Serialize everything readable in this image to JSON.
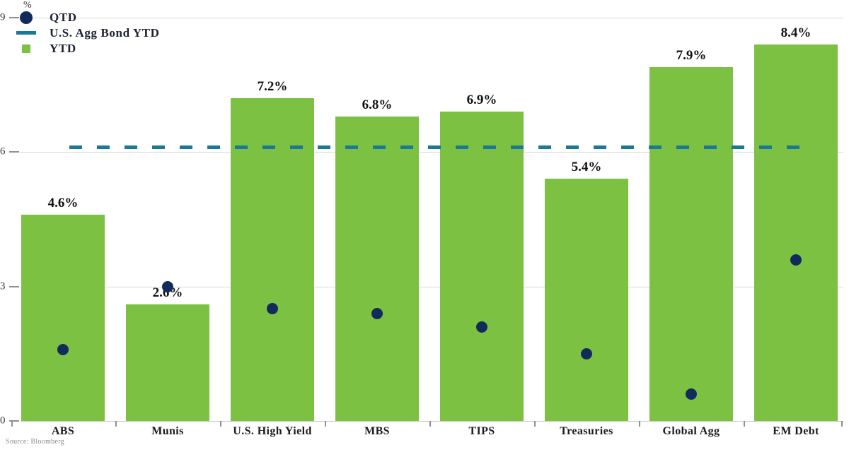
{
  "legend": {
    "items": [
      {
        "label": "QTD",
        "marker": "circle"
      },
      {
        "label": "U.S. Agg Bond YTD",
        "marker": "dash"
      },
      {
        "label": "YTD",
        "marker": "square"
      }
    ]
  },
  "axis": {
    "unit_label": "%"
  },
  "source": "Source: Bloomberg",
  "colors": {
    "bar_green": "#7cc142",
    "dot_navy": "#112c5c",
    "line_teal": "#1b7897",
    "grid": "#d9d9d9",
    "tick": "#8f8f8f"
  },
  "chart_data": {
    "type": "bar",
    "title": "",
    "categories": [
      "ABS",
      "Munis",
      "U.S. High Yield",
      "MBS",
      "TIPS",
      "Treasuries",
      "Global Agg",
      "EM Debt"
    ],
    "series": [
      {
        "name": "YTD",
        "type": "bar",
        "color": "#7cc142",
        "values": [
          4.6,
          2.6,
          7.2,
          6.8,
          6.9,
          5.4,
          7.9,
          8.4
        ],
        "labels": [
          "4.6%",
          "2.6%",
          "7.2%",
          "6.8%",
          "6.9%",
          "5.4%",
          "7.9%",
          "8.4%"
        ]
      },
      {
        "name": "QTD",
        "type": "point",
        "color": "#112c5c",
        "values": [
          1.6,
          3.0,
          2.5,
          2.4,
          2.1,
          1.5,
          0.6,
          3.6
        ]
      },
      {
        "name": "U.S. Agg Bond YTD",
        "type": "hline",
        "color": "#1b7897",
        "value": 6.1
      }
    ],
    "ylabel": "%",
    "ylim": [
      0,
      9
    ],
    "yticks": [
      0,
      3,
      6,
      9
    ],
    "grid": true,
    "legend_position": "top-left",
    "source": "Source: Bloomberg"
  }
}
